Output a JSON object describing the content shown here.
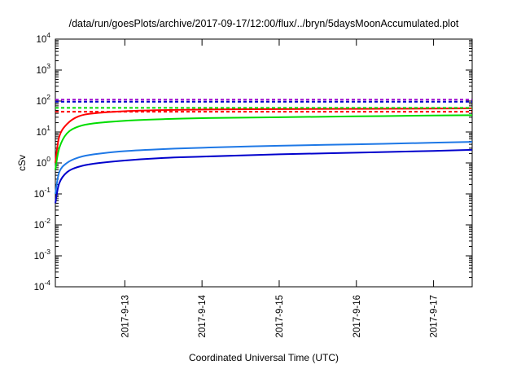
{
  "chart_data": {
    "type": "line",
    "title": "/data/run/goesPlots/archive/2017-09-17/12:00/flux/../bryn/5daysMoonAccumulated.plot",
    "xlabel": "Coordinated Universal Time (UTC)",
    "ylabel": "cSv",
    "yscale": "log",
    "ylim_exponents": [
      -4,
      4
    ],
    "y_tick_exponents": [
      -4,
      -3,
      -2,
      -1,
      0,
      1,
      2,
      3,
      4
    ],
    "y_tick_base": "10",
    "x_unit": "days",
    "xlim_days": [
      12.1,
      17.5
    ],
    "x_ticks": [
      {
        "day": 13,
        "label": "2017-9-13"
      },
      {
        "day": 14,
        "label": "2017-9-14"
      },
      {
        "day": 15,
        "label": "2017-9-15"
      },
      {
        "day": 16,
        "label": "2017-9-16"
      },
      {
        "day": 17,
        "label": "2017-9-17"
      }
    ],
    "grid": false,
    "legend": "none",
    "series": [
      {
        "color": "#ff0000",
        "style": "solid",
        "x": [
          12.1,
          12.15,
          12.25,
          12.4,
          12.6,
          13.0,
          13.5,
          14.0,
          15.0,
          16.0,
          17.0,
          17.5
        ],
        "values": [
          1.0,
          7,
          18,
          32,
          40,
          47,
          51,
          53,
          55,
          56,
          57,
          58
        ]
      },
      {
        "color": "#00dd00",
        "style": "solid",
        "x": [
          12.1,
          12.15,
          12.25,
          12.4,
          12.6,
          13.0,
          13.5,
          14.0,
          15.0,
          16.0,
          17.0,
          17.5
        ],
        "values": [
          0.6,
          3.0,
          9,
          15,
          19,
          23,
          26,
          28,
          30,
          32,
          34,
          35
        ]
      },
      {
        "color": "#1e78e6",
        "style": "solid",
        "x": [
          12.1,
          12.15,
          12.25,
          12.4,
          12.6,
          13.0,
          13.5,
          14.0,
          15.0,
          16.0,
          17.0,
          17.5
        ],
        "values": [
          0.1,
          0.5,
          1.0,
          1.5,
          1.9,
          2.4,
          2.8,
          3.1,
          3.6,
          4.0,
          4.5,
          4.8
        ]
      },
      {
        "color": "#0000cc",
        "style": "solid",
        "x": [
          12.1,
          12.15,
          12.25,
          12.4,
          12.6,
          13.0,
          13.5,
          14.0,
          15.0,
          16.0,
          17.0,
          17.5
        ],
        "values": [
          0.05,
          0.22,
          0.5,
          0.75,
          0.95,
          1.2,
          1.45,
          1.6,
          1.9,
          2.15,
          2.45,
          2.65
        ]
      },
      {
        "color": "#9900cc",
        "style": "dashed",
        "x": [
          12.1,
          17.5
        ],
        "values": [
          110,
          110
        ]
      },
      {
        "color": "#0000cc",
        "style": "dashed",
        "x": [
          12.1,
          17.5
        ],
        "values": [
          95,
          95
        ]
      },
      {
        "color": "#00dd00",
        "style": "dashed",
        "x": [
          12.1,
          17.5
        ],
        "values": [
          60,
          60
        ]
      },
      {
        "color": "#ff0000",
        "style": "dashed",
        "x": [
          12.1,
          17.5
        ],
        "values": [
          45,
          45
        ]
      }
    ]
  }
}
